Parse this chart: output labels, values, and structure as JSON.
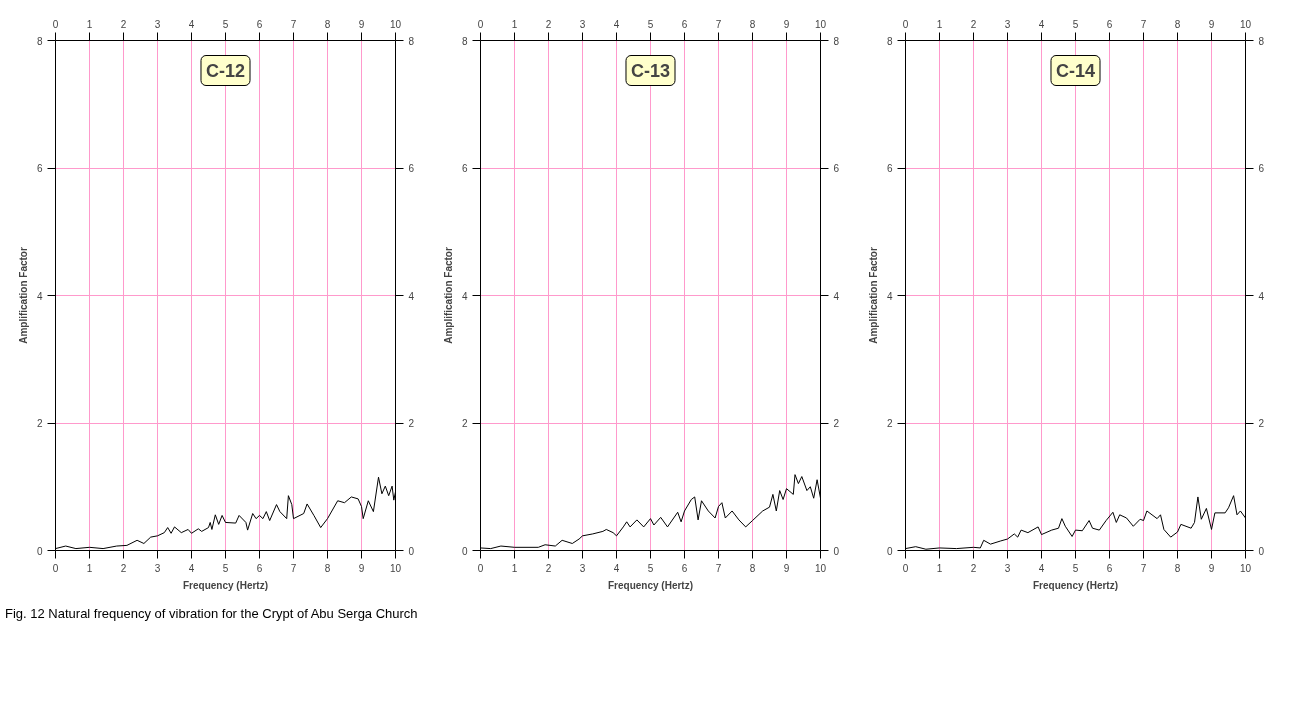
{
  "chart_data": [
    {
      "type": "line",
      "title": "C-12",
      "xlabel": "Frequency (Hertz)",
      "ylabel": "Amplification Factor",
      "xlim": [
        0,
        10
      ],
      "xticks": [
        0,
        1,
        2,
        3,
        4,
        5,
        6,
        7,
        8,
        9,
        10
      ],
      "x2lim": [
        0,
        10
      ],
      "x2ticks": [
        0,
        1,
        2,
        3,
        4,
        5,
        6,
        7,
        8,
        9,
        10
      ],
      "ylim": [
        0,
        8
      ],
      "yticks": [
        0,
        2,
        4,
        6,
        8
      ],
      "y2lim": [
        0,
        8
      ],
      "y2ticks": [
        0,
        2,
        4,
        6,
        8
      ],
      "grid": true,
      "annotations": [
        "Fig. 12  Natural frequency of vibration for the Crypt of Abu Serga Church"
      ],
      "x": [
        0,
        0.3,
        0.6,
        1.0,
        1.4,
        1.8,
        2.1,
        2.4,
        2.6,
        2.8,
        3.0,
        3.2,
        3.3,
        3.4,
        3.5,
        3.7,
        3.9,
        4.0,
        4.2,
        4.3,
        4.5,
        4.55,
        4.6,
        4.7,
        4.8,
        4.9,
        5.0,
        5.3,
        5.4,
        5.6,
        5.65,
        5.8,
        5.9,
        6.0,
        6.1,
        6.2,
        6.3,
        6.5,
        6.6,
        6.8,
        6.85,
        6.95,
        7.0,
        7.3,
        7.4,
        7.6,
        7.8,
        8.0,
        8.3,
        8.5,
        8.7,
        8.9,
        9.0,
        9.05,
        9.2,
        9.35,
        9.5,
        9.6,
        9.7,
        9.8,
        9.9,
        9.95,
        10.0
      ],
      "series": [
        {
          "color": "#000000",
          "values": [
            0.03,
            0.07,
            0.03,
            0.05,
            0.03,
            0.07,
            0.08,
            0.16,
            0.11,
            0.21,
            0.23,
            0.28,
            0.36,
            0.27,
            0.37,
            0.28,
            0.33,
            0.27,
            0.34,
            0.3,
            0.36,
            0.44,
            0.33,
            0.56,
            0.41,
            0.55,
            0.44,
            0.43,
            0.55,
            0.44,
            0.32,
            0.58,
            0.5,
            0.55,
            0.5,
            0.61,
            0.47,
            0.72,
            0.61,
            0.5,
            0.86,
            0.72,
            0.5,
            0.58,
            0.73,
            0.55,
            0.36,
            0.5,
            0.78,
            0.75,
            0.84,
            0.81,
            0.69,
            0.5,
            0.78,
            0.61,
            1.15,
            0.89,
            1.01,
            0.86,
            1.01,
            0.79,
            0.92
          ]
        }
      ]
    },
    {
      "type": "line",
      "title": "C-13",
      "xlabel": "Frequency (Hertz)",
      "ylabel": "Amplification Factor",
      "xlim": [
        0,
        10
      ],
      "xticks": [
        0,
        1,
        2,
        3,
        4,
        5,
        6,
        7,
        8,
        9,
        10
      ],
      "x2lim": [
        0,
        10
      ],
      "x2ticks": [
        0,
        1,
        2,
        3,
        4,
        5,
        6,
        7,
        8,
        9,
        10
      ],
      "ylim": [
        0,
        8
      ],
      "yticks": [
        0,
        2,
        4,
        6,
        8
      ],
      "y2lim": [
        0,
        8
      ],
      "y2ticks": [
        0,
        2,
        4,
        6,
        8
      ],
      "grid": true,
      "x": [
        0,
        0.3,
        0.6,
        1.0,
        1.7,
        1.9,
        2.2,
        2.4,
        2.7,
        2.9,
        3.0,
        3.3,
        3.6,
        3.7,
        3.9,
        4.0,
        4.2,
        4.3,
        4.4,
        4.6,
        4.8,
        5.0,
        5.1,
        5.3,
        5.5,
        5.8,
        5.9,
        6.0,
        6.2,
        6.3,
        6.4,
        6.5,
        6.7,
        6.9,
        7.0,
        7.1,
        7.2,
        7.4,
        7.6,
        7.8,
        8.0,
        8.3,
        8.5,
        8.6,
        8.7,
        8.8,
        8.9,
        9.0,
        9.2,
        9.25,
        9.35,
        9.45,
        9.6,
        9.7,
        9.8,
        9.9,
        10.0
      ],
      "series": [
        {
          "color": "#000000",
          "values": [
            0.04,
            0.03,
            0.07,
            0.05,
            0.05,
            0.09,
            0.07,
            0.16,
            0.11,
            0.18,
            0.23,
            0.26,
            0.3,
            0.33,
            0.28,
            0.23,
            0.37,
            0.45,
            0.37,
            0.48,
            0.37,
            0.5,
            0.4,
            0.52,
            0.37,
            0.6,
            0.45,
            0.62,
            0.8,
            0.84,
            0.48,
            0.78,
            0.62,
            0.51,
            0.69,
            0.75,
            0.51,
            0.62,
            0.48,
            0.37,
            0.47,
            0.62,
            0.68,
            0.88,
            0.62,
            0.94,
            0.8,
            0.97,
            0.88,
            1.19,
            1.05,
            1.16,
            0.94,
            1.0,
            0.82,
            1.11,
            0.82
          ]
        }
      ]
    },
    {
      "type": "line",
      "title": "C-14",
      "xlabel": "Frequency (Hertz)",
      "ylabel": "Amplification Factor",
      "xlim": [
        0,
        10
      ],
      "xticks": [
        0,
        1,
        2,
        3,
        4,
        5,
        6,
        7,
        8,
        9,
        10
      ],
      "x2lim": [
        0,
        10
      ],
      "x2ticks": [
        0,
        1,
        2,
        3,
        4,
        5,
        6,
        7,
        8,
        9,
        10
      ],
      "ylim": [
        0,
        8
      ],
      "yticks": [
        0,
        2,
        4,
        6,
        8
      ],
      "y2lim": [
        0,
        8
      ],
      "y2ticks": [
        0,
        2,
        4,
        6,
        8
      ],
      "grid": true,
      "x": [
        0,
        0.3,
        0.6,
        1.0,
        1.5,
        2.0,
        2.2,
        2.3,
        2.5,
        2.8,
        3.0,
        3.2,
        3.3,
        3.4,
        3.6,
        3.9,
        4.0,
        4.3,
        4.5,
        4.6,
        4.7,
        4.9,
        5.0,
        5.2,
        5.4,
        5.5,
        5.7,
        5.9,
        6.1,
        6.2,
        6.3,
        6.5,
        6.7,
        6.9,
        7.0,
        7.1,
        7.4,
        7.5,
        7.6,
        7.8,
        8.0,
        8.1,
        8.4,
        8.5,
        8.6,
        8.7,
        8.85,
        9.0,
        9.1,
        9.4,
        9.5,
        9.65,
        9.75,
        9.85,
        10.0
      ],
      "series": [
        {
          "color": "#000000",
          "values": [
            0.03,
            0.06,
            0.02,
            0.04,
            0.03,
            0.05,
            0.04,
            0.16,
            0.1,
            0.15,
            0.18,
            0.26,
            0.21,
            0.32,
            0.28,
            0.37,
            0.25,
            0.32,
            0.35,
            0.5,
            0.38,
            0.22,
            0.32,
            0.31,
            0.47,
            0.35,
            0.32,
            0.47,
            0.6,
            0.44,
            0.56,
            0.51,
            0.38,
            0.49,
            0.47,
            0.62,
            0.5,
            0.56,
            0.33,
            0.21,
            0.29,
            0.41,
            0.35,
            0.44,
            0.84,
            0.49,
            0.66,
            0.33,
            0.59,
            0.59,
            0.67,
            0.86,
            0.56,
            0.62,
            0.51
          ]
        }
      ]
    }
  ]
}
